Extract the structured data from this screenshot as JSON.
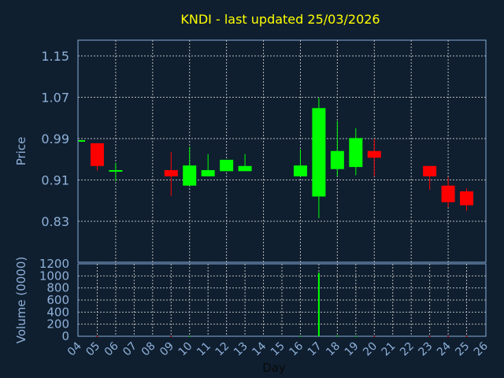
{
  "chart_data": [
    {
      "type": "candlestick",
      "title": "KNDI - last updated 25/03/2026",
      "ylabel": "Price",
      "ylim": [
        0.8,
        1.19
      ],
      "yticks": [
        "1.15",
        "1.07",
        "0.99",
        "0.91",
        "0.83"
      ],
      "ytick_values": [
        1.15,
        1.07,
        0.99,
        0.91,
        0.83
      ],
      "grid": true,
      "up_color": "#00ff00",
      "down_color": "#ff0000",
      "candles": [
        {
          "day": "04",
          "open": 0.985,
          "high": 0.987,
          "low": 0.985,
          "close": 0.987
        },
        {
          "day": "05",
          "open": 0.981,
          "high": 0.981,
          "low": 0.928,
          "close": 0.937
        },
        {
          "day": "06",
          "open": 0.929,
          "high": 0.943,
          "low": 0.908,
          "close": 0.929
        },
        {
          "day": "09",
          "open": 0.929,
          "high": 0.964,
          "low": 0.879,
          "close": 0.917
        },
        {
          "day": "10",
          "open": 0.899,
          "high": 0.974,
          "low": 0.899,
          "close": 0.938
        },
        {
          "day": "11",
          "open": 0.917,
          "high": 0.96,
          "low": 0.917,
          "close": 0.929
        },
        {
          "day": "12",
          "open": 0.927,
          "high": 0.949,
          "low": 0.927,
          "close": 0.949
        },
        {
          "day": "13",
          "open": 0.927,
          "high": 0.96,
          "low": 0.927,
          "close": 0.937
        },
        {
          "day": "16",
          "open": 0.917,
          "high": 0.969,
          "low": 0.917,
          "close": 0.938
        },
        {
          "day": "17",
          "open": 0.878,
          "high": 1.069,
          "low": 0.836,
          "close": 1.049
        },
        {
          "day": "18",
          "open": 0.931,
          "high": 1.024,
          "low": 0.917,
          "close": 0.966
        },
        {
          "day": "19",
          "open": 0.935,
          "high": 1.01,
          "low": 0.919,
          "close": 0.991
        },
        {
          "day": "20",
          "open": 0.966,
          "high": 0.99,
          "low": 0.917,
          "close": 0.953
        },
        {
          "day": "23",
          "open": 0.937,
          "high": 0.937,
          "low": 0.891,
          "close": 0.917
        },
        {
          "day": "24",
          "open": 0.899,
          "high": 0.915,
          "low": 0.857,
          "close": 0.867
        },
        {
          "day": "25",
          "open": 0.888,
          "high": 0.894,
          "low": 0.85,
          "close": 0.861
        }
      ]
    },
    {
      "type": "bar",
      "ylabel": "Volume (0000)",
      "xlabel": "Day",
      "ylim": [
        0,
        1200
      ],
      "yticks": [
        "1200",
        "1000",
        "800",
        "600",
        "400",
        "200",
        "0"
      ],
      "ytick_values": [
        1200,
        1000,
        800,
        600,
        400,
        200,
        0
      ],
      "categories": [
        "04",
        "05",
        "06",
        "07",
        "08",
        "09",
        "10",
        "11",
        "12",
        "13",
        "14",
        "15",
        "16",
        "17",
        "18",
        "19",
        "20",
        "21",
        "22",
        "23",
        "24",
        "25",
        "26"
      ],
      "bars": [
        {
          "day": "05",
          "value": 5,
          "color": "#ff0000"
        },
        {
          "day": "09",
          "value": 5,
          "color": "#ff0000"
        },
        {
          "day": "10",
          "value": 5,
          "color": "#00ff00"
        },
        {
          "day": "16",
          "value": 5,
          "color": "#00ff00"
        },
        {
          "day": "17",
          "value": 1050,
          "color": "#00ff00"
        },
        {
          "day": "18",
          "value": 10,
          "color": "#00ff00"
        },
        {
          "day": "19",
          "value": 5,
          "color": "#00ff00"
        },
        {
          "day": "20",
          "value": 5,
          "color": "#ff0000"
        },
        {
          "day": "23",
          "value": 5,
          "color": "#ff0000"
        },
        {
          "day": "24",
          "value": 5,
          "color": "#ff0000"
        },
        {
          "day": "25",
          "value": 5,
          "color": "#ff0000"
        }
      ]
    }
  ],
  "colors": {
    "background": "#0f1f30",
    "title": "#ffff00",
    "axis_text": "#8fb0d8",
    "frame": "#8aaed8",
    "grid": "#b8b8b8"
  }
}
